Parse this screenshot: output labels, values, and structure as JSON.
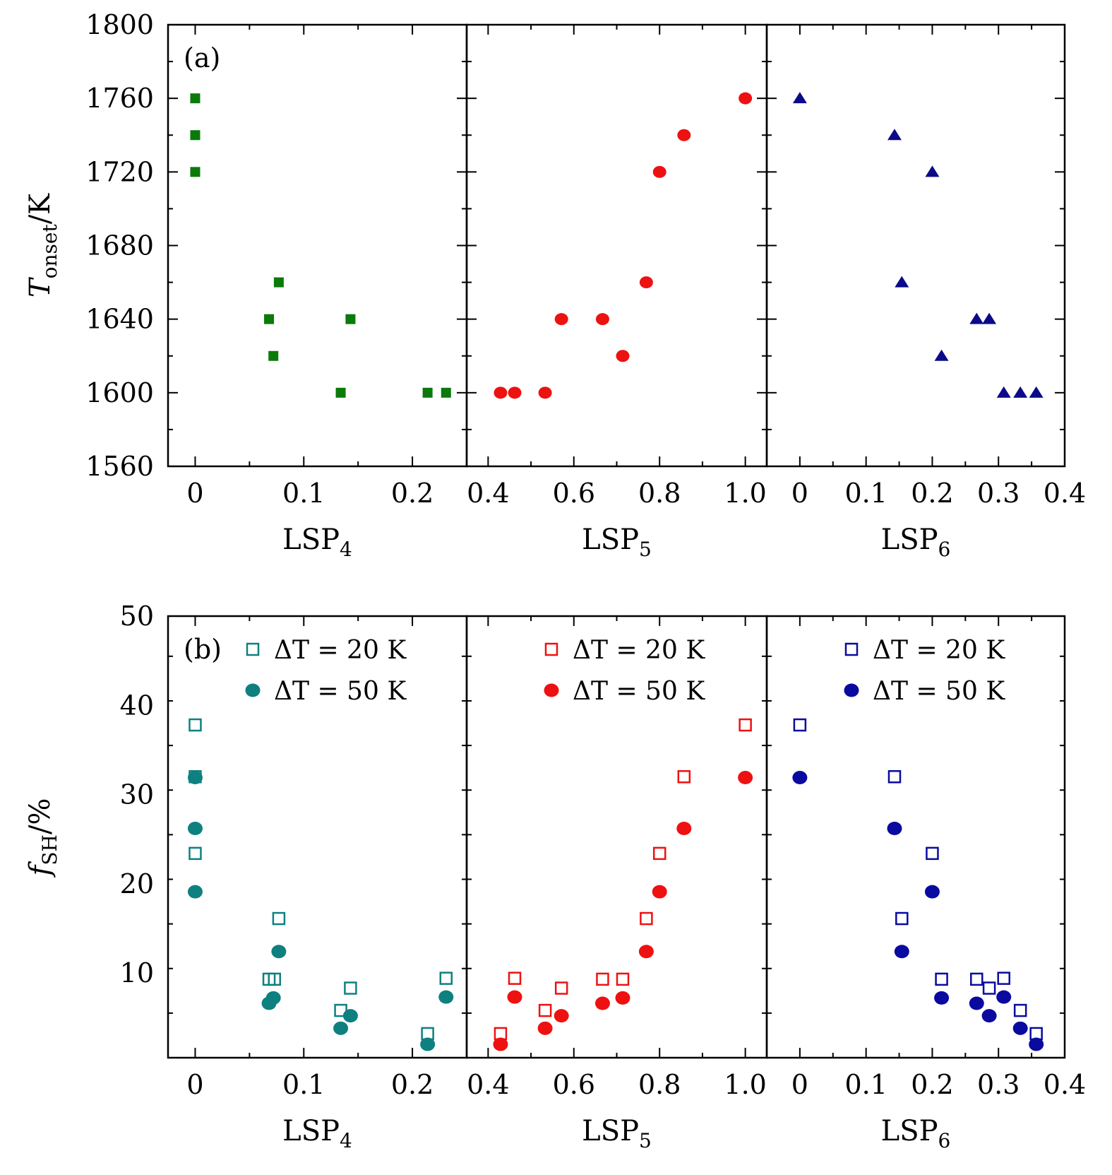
{
  "chart_data": [
    {
      "type": "scatter",
      "panel": "(a)",
      "ylabel": {
        "main": "T",
        "sub": "onset",
        "unit": "/K"
      },
      "ylim": [
        1560,
        1800
      ],
      "yticks": [
        1560,
        1600,
        1640,
        1680,
        1720,
        1760,
        1800
      ],
      "subplots": [
        {
          "xlabel": {
            "main": "LSP",
            "sub": "4"
          },
          "xlim": [
            -0.025,
            0.25
          ],
          "xticks": [
            "0",
            "0.1",
            "0.2"
          ],
          "series": [
            {
              "name": "Tonset",
              "marker": "square",
              "color": "#0a7a0a",
              "x": [
                0,
                0,
                0,
                0.077,
                0.068,
                0.072,
                0.134,
                0.143,
                0.214,
                0.231
              ],
              "y": [
                1760,
                1740,
                1720,
                1660,
                1640,
                1620,
                1600,
                1640,
                1600,
                1600
              ]
            }
          ]
        },
        {
          "xlabel": {
            "main": "LSP",
            "sub": "5"
          },
          "xlim": [
            0.35,
            1.05
          ],
          "xticks": [
            "0.4",
            "0.6",
            "0.8",
            "1.0"
          ],
          "series": [
            {
              "name": "Tonset",
              "marker": "circle",
              "color": "#ee1111",
              "x": [
                0.429,
                0.462,
                0.533,
                0.571,
                0.667,
                0.714,
                0.769,
                0.8,
                0.857,
                1.0
              ],
              "y": [
                1600,
                1600,
                1600,
                1640,
                1640,
                1620,
                1660,
                1720,
                1740,
                1760
              ]
            }
          ]
        },
        {
          "xlabel": {
            "main": "LSP",
            "sub": "6"
          },
          "xlim": [
            -0.05,
            0.4
          ],
          "xticks": [
            "0",
            "0.1",
            "0.2",
            "0.3",
            "0.4"
          ],
          "series": [
            {
              "name": "Tonset",
              "marker": "triangle",
              "color": "#0a0a8a",
              "x": [
                0,
                0.143,
                0.2,
                0.154,
                0.267,
                0.286,
                0.214,
                0.308,
                0.333,
                0.357
              ],
              "y": [
                1760,
                1740,
                1720,
                1660,
                1640,
                1640,
                1620,
                1600,
                1600,
                1600
              ]
            }
          ]
        }
      ]
    },
    {
      "type": "scatter",
      "panel": "(b)",
      "ylabel": {
        "main": "f",
        "sub": "SH",
        "unit": "/%"
      },
      "ylim": [
        0.5,
        50
      ],
      "yticks": [
        10,
        20,
        30,
        40,
        50
      ],
      "subplots": [
        {
          "xlabel": {
            "main": "LSP",
            "sub": "4"
          },
          "xlim": [
            -0.025,
            0.25
          ],
          "xticks": [
            "0",
            "0.1",
            "0.2"
          ],
          "legend": [
            {
              "marker": "open-square",
              "label": "ΔT = 20 K"
            },
            {
              "marker": "filled-circle",
              "label": "ΔT = 50 K"
            }
          ],
          "color": "#0e8080",
          "series": [
            {
              "name": "ΔT = 20 K",
              "marker": "open-square",
              "x": [
                0,
                0,
                0,
                0.077,
                0.068,
                0.073,
                0.134,
                0.143,
                0.214,
                0.231
              ],
              "y": [
                37.8,
                32.0,
                23.4,
                16.1,
                9.3,
                9.3,
                5.8,
                8.3,
                3.2,
                9.4
              ]
            },
            {
              "name": "ΔT = 50 K",
              "marker": "filled-circle",
              "x": [
                0,
                0,
                0,
                0.077,
                0.068,
                0.072,
                0.134,
                0.143,
                0.214,
                0.231
              ],
              "y": [
                31.9,
                26.2,
                19.1,
                12.4,
                6.6,
                7.2,
                3.8,
                5.2,
                2.0,
                7.3
              ]
            }
          ]
        },
        {
          "xlabel": {
            "main": "LSP",
            "sub": "5"
          },
          "xlim": [
            0.35,
            1.05
          ],
          "xticks": [
            "0.4",
            "0.6",
            "0.8",
            "1.0"
          ],
          "legend": [
            {
              "marker": "open-square",
              "label": "ΔT = 20 K"
            },
            {
              "marker": "filled-circle",
              "label": "ΔT = 50 K"
            }
          ],
          "color": "#ee1111",
          "series": [
            {
              "name": "ΔT = 20 K",
              "marker": "open-square",
              "x": [
                0.429,
                0.462,
                0.533,
                0.571,
                0.667,
                0.714,
                0.769,
                0.8,
                0.857,
                1.0
              ],
              "y": [
                3.2,
                9.4,
                5.8,
                8.3,
                9.3,
                9.3,
                16.1,
                23.4,
                32.0,
                37.8
              ]
            },
            {
              "name": "ΔT = 50 K",
              "marker": "filled-circle",
              "x": [
                0.429,
                0.462,
                0.533,
                0.571,
                0.667,
                0.714,
                0.769,
                0.8,
                0.857,
                1.0
              ],
              "y": [
                2.0,
                7.3,
                3.8,
                5.2,
                6.6,
                7.2,
                12.4,
                19.1,
                26.2,
                31.9
              ]
            }
          ]
        },
        {
          "xlabel": {
            "main": "LSP",
            "sub": "6"
          },
          "xlim": [
            -0.05,
            0.4
          ],
          "xticks": [
            "0",
            "0.1",
            "0.2",
            "0.3",
            "0.4"
          ],
          "legend": [
            {
              "marker": "open-square",
              "label": "ΔT = 20 K"
            },
            {
              "marker": "filled-circle",
              "label": "ΔT = 50 K"
            }
          ],
          "color": "#0a0aa0",
          "series": [
            {
              "name": "ΔT = 20 K",
              "marker": "open-square",
              "x": [
                0,
                0.143,
                0.2,
                0.154,
                0.214,
                0.267,
                0.286,
                0.308,
                0.333,
                0.357
              ],
              "y": [
                37.8,
                32.0,
                23.4,
                16.1,
                9.3,
                9.3,
                8.3,
                9.4,
                5.8,
                3.2
              ]
            },
            {
              "name": "ΔT = 50 K",
              "marker": "filled-circle",
              "x": [
                0,
                0.143,
                0.2,
                0.154,
                0.214,
                0.267,
                0.286,
                0.308,
                0.333,
                0.357
              ],
              "y": [
                31.9,
                26.2,
                19.1,
                12.4,
                7.2,
                6.6,
                5.2,
                7.3,
                3.8,
                2.0
              ]
            }
          ]
        }
      ]
    }
  ]
}
